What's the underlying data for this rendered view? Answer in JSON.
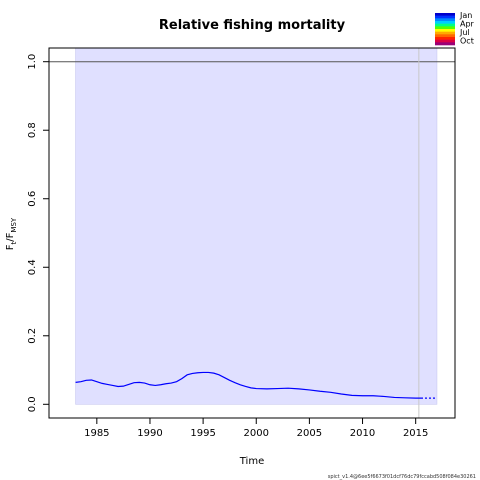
{
  "chart_data": {
    "type": "line",
    "title": "Relative fishing mortality",
    "xlabel": "Time",
    "ylabel_main": "F",
    "ylabel_sub1": "t",
    "ylabel_mid": "/F",
    "ylabel_sub2": "MSY",
    "xlim": [
      1980.5,
      2018.7
    ],
    "ylim": [
      -0.04,
      1.04
    ],
    "x_ticks": [
      1985,
      1990,
      1995,
      2000,
      2005,
      2010,
      2015
    ],
    "y_ticks": [
      0.0,
      0.2,
      0.4,
      0.6,
      0.8,
      1.0
    ],
    "y_tick_labels": [
      "0.0",
      "0.2",
      "0.4",
      "0.6",
      "0.8",
      "1.0"
    ],
    "reference_line": 1.0,
    "last_data_year": 2015.3,
    "confidence_band": {
      "x0": 1983.0,
      "x1": 2017.0,
      "lower": 0.0,
      "upper": 1.04,
      "color": "#e0e0ff"
    },
    "series": [
      {
        "color": "#0000ff",
        "x": [
          1983,
          1983.5,
          1984,
          1984.5,
          1985,
          1985.5,
          1986,
          1986.5,
          1987,
          1987.5,
          1988,
          1988.5,
          1989,
          1989.5,
          1990,
          1990.5,
          1991,
          1991.5,
          1992,
          1992.5,
          1993,
          1993.5,
          1994,
          1994.5,
          1995,
          1995.5,
          1996,
          1996.5,
          1997,
          1997.5,
          1998,
          1998.5,
          1999,
          1999.5,
          2000,
          2001,
          2002,
          2003,
          2004,
          2005,
          2006,
          2007,
          2008,
          2009,
          2010,
          2011,
          2012,
          2013,
          2014,
          2015,
          2015.5
        ],
        "values": [
          0.064,
          0.066,
          0.07,
          0.071,
          0.066,
          0.061,
          0.058,
          0.055,
          0.052,
          0.053,
          0.058,
          0.063,
          0.064,
          0.062,
          0.057,
          0.055,
          0.057,
          0.06,
          0.062,
          0.066,
          0.075,
          0.086,
          0.09,
          0.092,
          0.093,
          0.093,
          0.091,
          0.086,
          0.078,
          0.07,
          0.063,
          0.057,
          0.052,
          0.048,
          0.046,
          0.045,
          0.046,
          0.047,
          0.045,
          0.042,
          0.038,
          0.035,
          0.03,
          0.026,
          0.025,
          0.025,
          0.023,
          0.02,
          0.019,
          0.018,
          0.018
        ]
      },
      {
        "color": "#0000ff",
        "style": "dotted",
        "x": [
          2015.5,
          2017
        ],
        "values": [
          0.018,
          0.018
        ]
      }
    ],
    "legend": {
      "position": "top-right",
      "labels": [
        "Jan",
        "Apr",
        "Jul",
        "Oct"
      ],
      "colors": [
        "#0000cc",
        "#0033ff",
        "#0088ff",
        "#00ccff",
        "#00ff88",
        "#55ff00",
        "#ffff00",
        "#ffaa00",
        "#ff6600",
        "#ff2200",
        "#dd0044",
        "#990077"
      ]
    }
  },
  "footer": {
    "text": "spict_v1.4@6ee5f6673f01dcf76dc79fccabd508f084e30261"
  }
}
